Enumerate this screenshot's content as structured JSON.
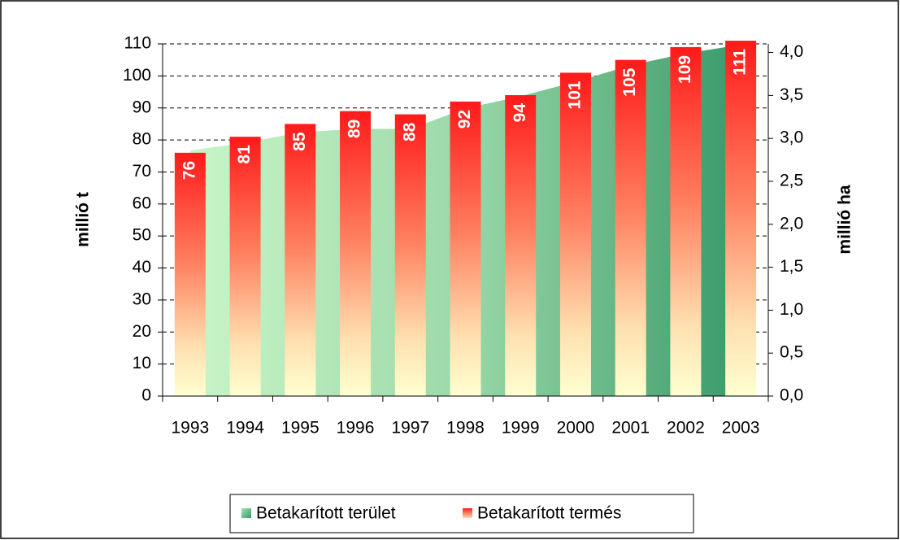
{
  "chart_data": {
    "type": "bar",
    "categories": [
      "1993",
      "1994",
      "1995",
      "1996",
      "1997",
      "1998",
      "1999",
      "2000",
      "2001",
      "2002",
      "2003"
    ],
    "series": [
      {
        "name": "Betakarított terület",
        "type": "area",
        "axis": "y2",
        "color": "#3a9a6a",
        "values": [
          2.86,
          2.95,
          3.07,
          3.11,
          3.11,
          3.35,
          3.49,
          3.66,
          3.85,
          3.99,
          4.09
        ]
      },
      {
        "name": "Betakarított termés",
        "type": "bar",
        "color": "#ff1a1a",
        "values": [
          76,
          81,
          85,
          89,
          88,
          92,
          94,
          101,
          105,
          109,
          111
        ]
      }
    ],
    "ylabel": "millió t",
    "y2label": "millió ha",
    "ylim": [
      0,
      110
    ],
    "yticks": [
      0,
      10,
      20,
      30,
      40,
      50,
      60,
      70,
      80,
      90,
      100,
      110
    ],
    "y2lim": [
      0,
      4.1
    ],
    "y2ticks": [
      {
        "value": 0,
        "label": "0,0"
      },
      {
        "value": 0.5,
        "label": "0,5"
      },
      {
        "value": 1,
        "label": "1,0"
      },
      {
        "value": 1.5,
        "label": "1,5"
      },
      {
        "value": 2,
        "label": "2,0"
      },
      {
        "value": 2.5,
        "label": "2,5"
      },
      {
        "value": 3,
        "label": "3,0"
      },
      {
        "value": 3.5,
        "label": "3,5"
      },
      {
        "value": 4,
        "label": "4,0"
      }
    ],
    "grid": true,
    "legend": "bottom"
  }
}
